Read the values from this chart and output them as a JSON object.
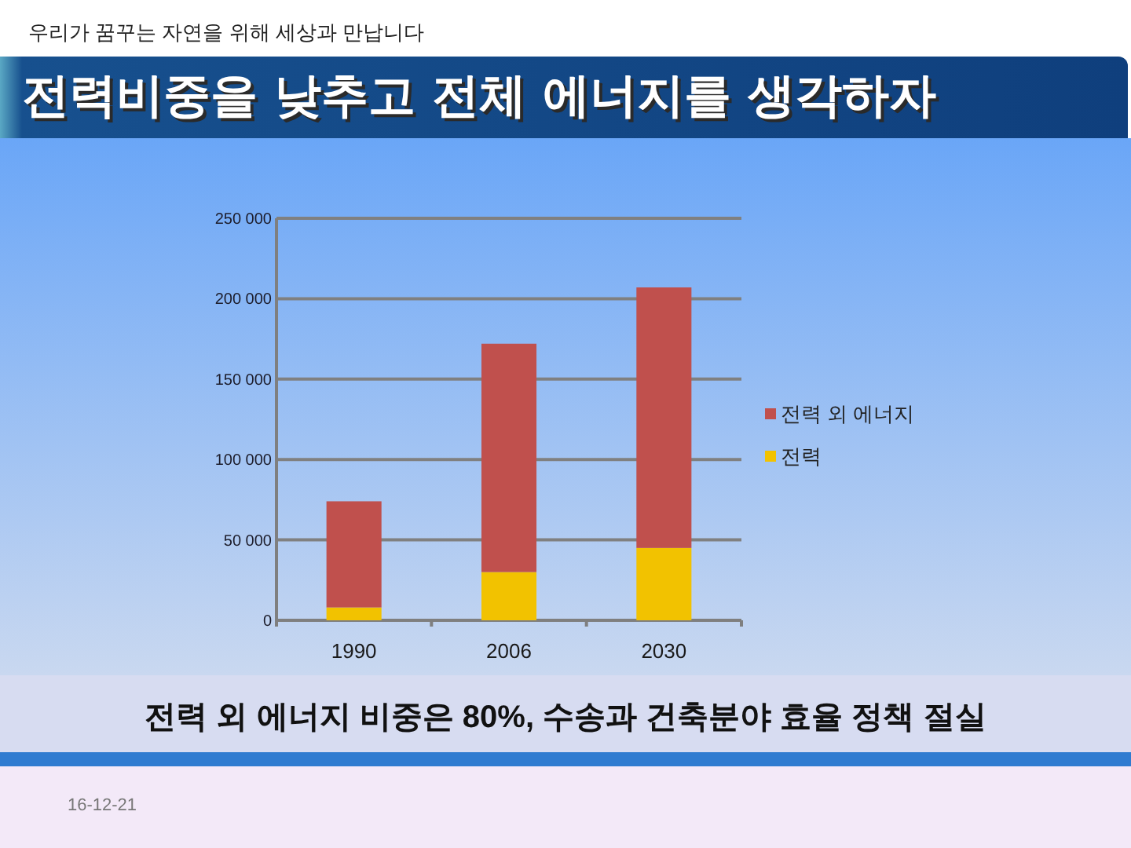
{
  "chart_data": {
    "type": "bar",
    "title": "전력비중을 낮추고 전체 에너지를 생각하자",
    "categories": [
      "1990",
      "2006",
      "2030"
    ],
    "stacked": true,
    "series": [
      {
        "name": "전력",
        "color": "#f2c200",
        "values": [
          8000,
          30000,
          45000
        ]
      },
      {
        "name": "전력 외 에너지",
        "color": "#c0504d",
        "values": [
          66000,
          142000,
          162000
        ]
      }
    ],
    "ylim": [
      0,
      250000
    ],
    "yticks": [
      0,
      {
        "value": 50000,
        "label": "50 000"
      },
      {
        "value": 100000,
        "label": "100 000"
      },
      {
        "value": 150000,
        "label": "150 000"
      },
      {
        "value": 200000,
        "label": "200 000"
      },
      {
        "value": 250000,
        "label": "250 000"
      }
    ],
    "grid": "y",
    "legend": "right",
    "annotations": [
      "우리가 꿈꾸는 자연을 위해 세상과 만납니다",
      "전력 외 에너지 비중은 80%, 수송과 건축분야 효율 정책 절실",
      "16-12-21"
    ]
  }
}
